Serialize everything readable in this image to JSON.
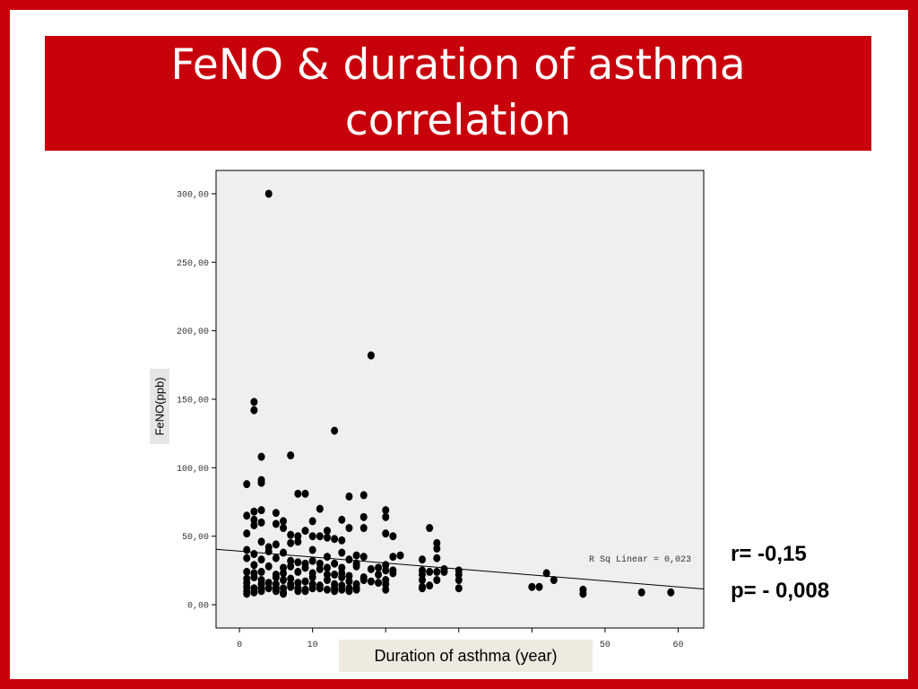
{
  "slide": {
    "title_line1": "FeNO & duration of asthma",
    "title_line2": "correlation",
    "r_text": "r= -0,15",
    "p_text": "p= - 0,008",
    "frame_color": "#c8000b"
  },
  "chart_data": {
    "type": "scatter",
    "xlabel": "Duration of asthma (year)",
    "ylabel": "FeNO(ppb)",
    "xlim": [
      -3.2,
      63.5
    ],
    "ylim": [
      -17,
      317
    ],
    "x_ticks": [
      0,
      10,
      20,
      30,
      40,
      50,
      60
    ],
    "x_tick_labels": [
      "0",
      "10",
      "",
      "",
      "",
      "50",
      "60"
    ],
    "y_ticks": [
      0,
      50,
      100,
      150,
      200,
      250,
      300
    ],
    "y_tick_labels": [
      "0,00",
      "50,00",
      "100,00",
      "150,00",
      "200,00",
      "250,00",
      "300,00"
    ],
    "fit_line": {
      "x": [
        -3.2,
        63.5
      ],
      "y": [
        40.5,
        11.5
      ],
      "label": "R Sq Linear = 0,023"
    },
    "grid": false,
    "plot_background": "#efefef",
    "marker_color": "#000000",
    "points": [
      [
        4,
        300
      ],
      [
        18,
        182
      ],
      [
        2,
        148
      ],
      [
        2,
        142
      ],
      [
        13,
        127
      ],
      [
        3,
        108
      ],
      [
        7,
        109
      ],
      [
        3,
        91
      ],
      [
        3,
        89
      ],
      [
        1,
        88
      ],
      [
        8,
        81
      ],
      [
        9,
        81
      ],
      [
        15,
        79
      ],
      [
        17,
        80
      ],
      [
        11,
        70
      ],
      [
        20,
        69
      ],
      [
        1,
        65
      ],
      [
        2,
        68
      ],
      [
        3,
        69
      ],
      [
        5,
        67
      ],
      [
        2,
        62
      ],
      [
        3,
        60
      ],
      [
        6,
        61
      ],
      [
        10,
        61
      ],
      [
        14,
        62
      ],
      [
        17,
        64
      ],
      [
        20,
        64
      ],
      [
        2,
        58
      ],
      [
        5,
        59
      ],
      [
        6,
        56
      ],
      [
        9,
        54
      ],
      [
        12,
        54
      ],
      [
        15,
        56
      ],
      [
        17,
        56
      ],
      [
        26,
        56
      ],
      [
        1,
        52
      ],
      [
        7,
        51
      ],
      [
        8,
        50
      ],
      [
        10,
        50
      ],
      [
        11,
        50
      ],
      [
        12,
        49
      ],
      [
        13,
        48
      ],
      [
        20,
        52
      ],
      [
        21,
        50
      ],
      [
        3,
        46
      ],
      [
        4,
        42
      ],
      [
        5,
        44
      ],
      [
        7,
        45
      ],
      [
        8,
        46
      ],
      [
        14,
        47
      ],
      [
        27,
        45
      ],
      [
        27,
        41
      ],
      [
        1,
        40
      ],
      [
        2,
        37
      ],
      [
        4,
        39
      ],
      [
        6,
        38
      ],
      [
        10,
        40
      ],
      [
        12,
        35
      ],
      [
        14,
        38
      ],
      [
        16,
        36
      ],
      [
        17,
        35
      ],
      [
        21,
        35
      ],
      [
        22,
        36
      ],
      [
        25,
        33
      ],
      [
        27,
        34
      ],
      [
        1,
        34
      ],
      [
        3,
        33
      ],
      [
        5,
        34
      ],
      [
        7,
        32
      ],
      [
        8,
        31
      ],
      [
        9,
        30
      ],
      [
        10,
        32
      ],
      [
        11,
        30
      ],
      [
        13,
        30
      ],
      [
        15,
        33
      ],
      [
        16,
        30
      ],
      [
        19,
        27
      ],
      [
        20,
        29
      ],
      [
        2,
        29
      ],
      [
        4,
        28
      ],
      [
        6,
        27
      ],
      [
        7,
        28
      ],
      [
        9,
        27
      ],
      [
        11,
        26
      ],
      [
        12,
        27
      ],
      [
        14,
        27
      ],
      [
        16,
        28
      ],
      [
        18,
        26
      ],
      [
        20,
        25
      ],
      [
        21,
        25
      ],
      [
        25,
        25
      ],
      [
        26,
        24
      ],
      [
        27,
        24
      ],
      [
        28,
        26
      ],
      [
        30,
        25
      ],
      [
        1,
        24
      ],
      [
        2,
        23
      ],
      [
        3,
        24
      ],
      [
        5,
        22
      ],
      [
        6,
        23
      ],
      [
        8,
        24
      ],
      [
        10,
        23
      ],
      [
        12,
        22
      ],
      [
        13,
        22
      ],
      [
        14,
        23
      ],
      [
        15,
        21
      ],
      [
        17,
        20
      ],
      [
        19,
        22
      ],
      [
        21,
        23
      ],
      [
        25,
        22
      ],
      [
        28,
        24
      ],
      [
        30,
        22
      ],
      [
        1,
        19
      ],
      [
        2,
        20
      ],
      [
        3,
        18
      ],
      [
        5,
        20
      ],
      [
        6,
        18
      ],
      [
        7,
        19
      ],
      [
        9,
        17
      ],
      [
        10,
        20
      ],
      [
        12,
        18
      ],
      [
        14,
        20
      ],
      [
        15,
        17
      ],
      [
        17,
        18
      ],
      [
        18,
        17
      ],
      [
        20,
        18
      ],
      [
        25,
        18
      ],
      [
        27,
        18
      ],
      [
        30,
        18
      ],
      [
        1,
        16
      ],
      [
        3,
        15
      ],
      [
        4,
        16
      ],
      [
        5,
        15
      ],
      [
        7,
        15
      ],
      [
        8,
        16
      ],
      [
        10,
        15
      ],
      [
        11,
        14
      ],
      [
        13,
        15
      ],
      [
        14,
        14
      ],
      [
        16,
        15
      ],
      [
        19,
        16
      ],
      [
        20,
        15
      ],
      [
        1,
        13
      ],
      [
        2,
        12
      ],
      [
        3,
        12
      ],
      [
        4,
        12
      ],
      [
        5,
        12
      ],
      [
        6,
        12
      ],
      [
        7,
        13
      ],
      [
        8,
        12
      ],
      [
        9,
        11
      ],
      [
        10,
        12
      ],
      [
        11,
        12
      ],
      [
        13,
        12
      ],
      [
        14,
        11
      ],
      [
        15,
        12
      ],
      [
        16,
        12
      ],
      [
        20,
        11
      ],
      [
        25,
        13
      ],
      [
        25,
        12
      ],
      [
        26,
        14
      ],
      [
        30,
        12
      ],
      [
        1,
        10
      ],
      [
        2,
        9
      ],
      [
        3,
        10
      ],
      [
        5,
        10
      ],
      [
        6,
        9
      ],
      [
        8,
        10
      ],
      [
        9,
        10
      ],
      [
        12,
        11
      ],
      [
        13,
        10
      ],
      [
        15,
        10
      ],
      [
        16,
        11
      ],
      [
        1,
        8
      ],
      [
        6,
        8
      ],
      [
        42,
        23
      ],
      [
        43,
        18
      ],
      [
        40,
        13
      ],
      [
        41,
        13
      ],
      [
        47,
        11
      ],
      [
        47,
        8
      ],
      [
        55,
        9
      ],
      [
        59,
        9
      ]
    ]
  }
}
